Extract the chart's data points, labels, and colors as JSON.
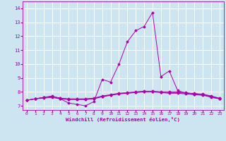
{
  "xlabel": "Windchill (Refroidissement éolien,°C)",
  "bg_color": "#cce5f0",
  "line_color": "#aa00aa",
  "grid_color": "#ffffff",
  "x_ticks": [
    0,
    1,
    2,
    3,
    4,
    5,
    6,
    7,
    8,
    9,
    10,
    11,
    12,
    13,
    14,
    15,
    16,
    17,
    18,
    19,
    20,
    21,
    22,
    23
  ],
  "y_ticks": [
    7,
    8,
    9,
    10,
    11,
    12,
    13,
    14
  ],
  "ylim": [
    6.7,
    14.5
  ],
  "xlim": [
    -0.5,
    23.5
  ],
  "lines": [
    {
      "x": [
        0,
        1,
        2,
        3,
        4,
        5,
        6,
        7,
        8,
        9,
        10,
        11,
        12,
        13,
        14,
        15,
        16,
        17,
        18,
        19,
        20,
        21,
        22,
        23
      ],
      "y": [
        7.4,
        7.5,
        7.6,
        7.7,
        7.5,
        7.2,
        7.1,
        7.0,
        7.3,
        8.9,
        8.7,
        10.0,
        11.6,
        12.4,
        12.7,
        13.7,
        9.1,
        9.5,
        8.1,
        7.9,
        7.9,
        7.8,
        7.6,
        7.5
      ]
    },
    {
      "x": [
        0,
        1,
        2,
        3,
        4,
        5,
        6,
        7,
        8,
        9,
        10,
        11,
        12,
        13,
        14,
        15,
        16,
        17,
        18,
        19,
        20,
        21,
        22,
        23
      ],
      "y": [
        7.4,
        7.5,
        7.55,
        7.6,
        7.5,
        7.45,
        7.45,
        7.45,
        7.5,
        7.65,
        7.75,
        7.85,
        7.9,
        7.95,
        8.0,
        8.0,
        7.95,
        7.9,
        7.9,
        7.85,
        7.8,
        7.75,
        7.65,
        7.5
      ]
    },
    {
      "x": [
        0,
        1,
        2,
        3,
        4,
        5,
        6,
        7,
        8,
        9,
        10,
        11,
        12,
        13,
        14,
        15,
        16,
        17,
        18,
        19,
        20,
        21,
        22,
        23
      ],
      "y": [
        7.4,
        7.5,
        7.6,
        7.65,
        7.55,
        7.5,
        7.5,
        7.5,
        7.55,
        7.7,
        7.8,
        7.9,
        7.95,
        8.0,
        8.05,
        8.05,
        8.0,
        8.0,
        8.0,
        7.95,
        7.85,
        7.85,
        7.7,
        7.55
      ]
    },
    {
      "x": [
        0,
        1,
        2,
        3,
        4,
        5,
        6,
        7,
        8,
        9,
        10,
        11,
        12,
        13,
        14,
        15,
        16,
        17,
        18,
        19,
        20,
        21,
        22,
        23
      ],
      "y": [
        7.4,
        7.5,
        7.6,
        7.68,
        7.55,
        7.48,
        7.48,
        7.48,
        7.53,
        7.68,
        7.78,
        7.88,
        7.93,
        7.98,
        8.03,
        8.03,
        7.98,
        7.95,
        7.95,
        7.9,
        7.83,
        7.8,
        7.68,
        7.53
      ]
    }
  ]
}
